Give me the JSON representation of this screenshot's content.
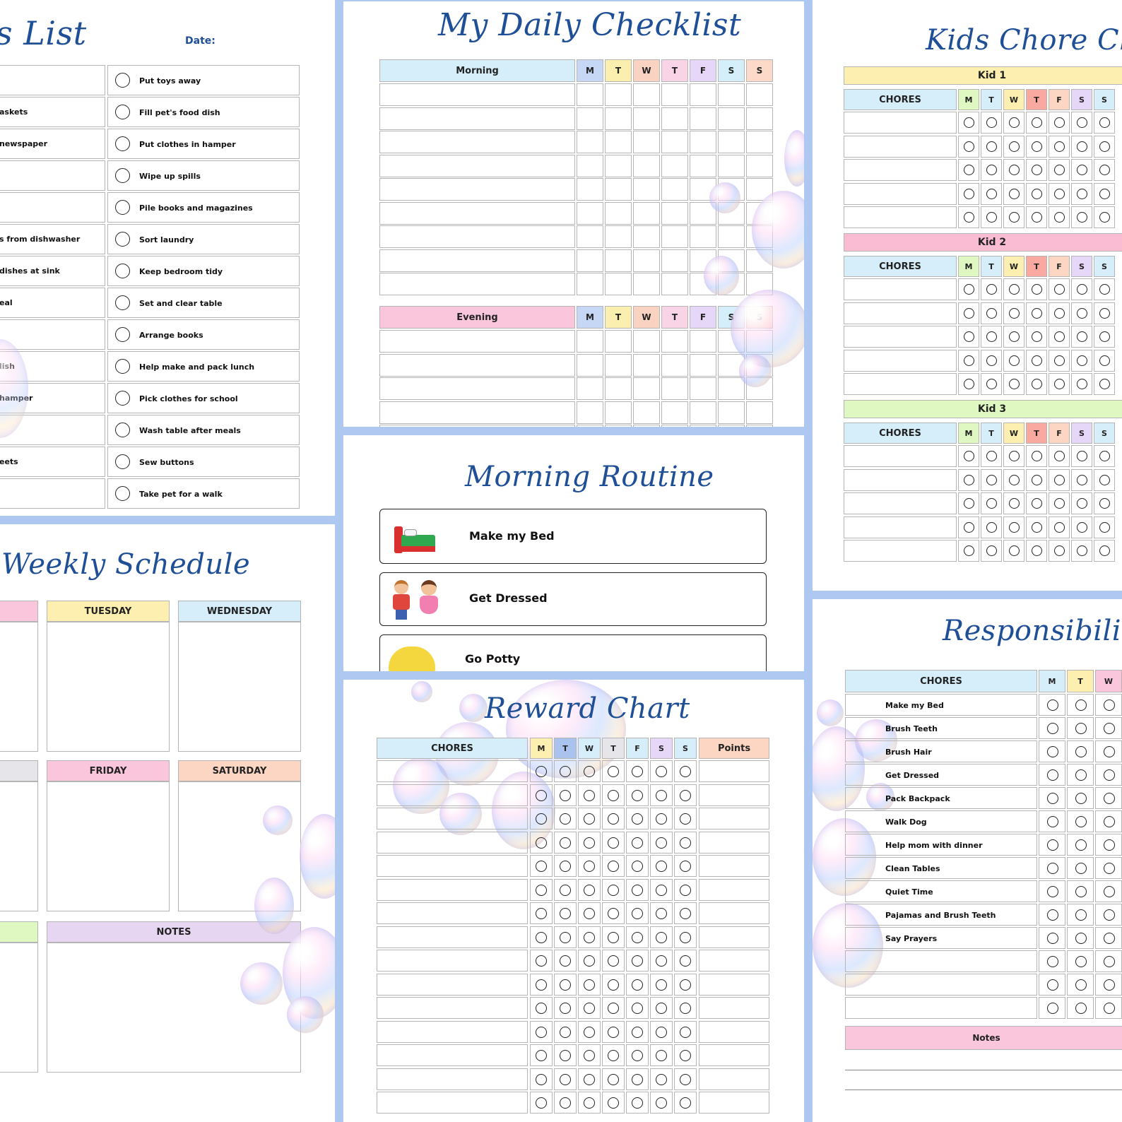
{
  "chores_list": {
    "title": "s List",
    "date_label": "Date:",
    "left_items": [
      "",
      "askets",
      " newspaper",
      "",
      "",
      "s from dishwasher",
      "dishes at sink",
      "eal",
      "",
      "lish",
      "hamper",
      "",
      "eets",
      ""
    ],
    "right_items": [
      "Put toys away",
      "Fill pet's food dish",
      "Put clothes in hamper",
      "Wipe up spills",
      "Pile books and magazines",
      "Sort laundry",
      "Keep bedroom tidy",
      "Set and clear table",
      "Arrange books",
      "Help make and pack lunch",
      "Pick clothes for school",
      "Wash table after meals",
      "Sew buttons",
      "Take pet for a walk"
    ]
  },
  "daily_checklist": {
    "title": "My Daily Checklist",
    "morning_label": "Morning",
    "evening_label": "Evening",
    "days": [
      "M",
      "T",
      "W",
      "T",
      "F",
      "S",
      "S"
    ],
    "day_colors": [
      "#c6d6f5",
      "#fbefb0",
      "#f9d2c2",
      "#f9d4e6",
      "#e6d6f7",
      "#d4eff9",
      "#fcd9c8"
    ]
  },
  "kids_chore_chart": {
    "title": "Kids Chore Ch",
    "chores_label": "CHORES",
    "days": [
      "M",
      "T",
      "W",
      "T",
      "F",
      "S",
      "S"
    ],
    "kids": [
      {
        "label": "Kid 1",
        "color": "#fcefb0"
      },
      {
        "label": "Kid 2",
        "color": "#f9bcd3"
      },
      {
        "label": "Kid 3",
        "color": "#dff7c1"
      }
    ]
  },
  "weekly_schedule": {
    "title": "Weekly Schedule",
    "tuesday": "TUESDAY",
    "wednesday": "WEDNESDAY",
    "friday": "FRIDAY",
    "saturday": "SATURDAY",
    "notes": "NOTES"
  },
  "morning_routine": {
    "title": "Morning Routine",
    "items": [
      "Make my Bed",
      "Get Dressed",
      "Go Potty"
    ]
  },
  "reward_chart": {
    "title": "Reward Chart",
    "chores_label": "CHORES",
    "points_label": "Points",
    "days": [
      "M",
      "T",
      "W",
      "T",
      "F",
      "S",
      "S"
    ]
  },
  "responsibilities": {
    "title": "Responsibiliti",
    "chores_label": "CHORES",
    "days": [
      "M",
      "T",
      "W"
    ],
    "items": [
      "Make my Bed",
      "Brush Teeth",
      "Brush Hair",
      "Get Dressed",
      "Pack Backpack",
      "Walk Dog",
      "Help mom with dinner",
      "Clean Tables",
      "Quiet Time",
      "Pajamas and Brush Teeth",
      "Say Prayers",
      "",
      "",
      ""
    ],
    "notes_label": "Notes"
  },
  "colors": {
    "title_blue": "#1f4f96",
    "frame_blue": "#aec8f2",
    "morning_header": "#d6eefa",
    "evening_header": "#f9c6dc",
    "chores_header": "#d6eefa",
    "notes_pink": "#f9c6dc",
    "notes_lavender": "#e6d6f2"
  }
}
